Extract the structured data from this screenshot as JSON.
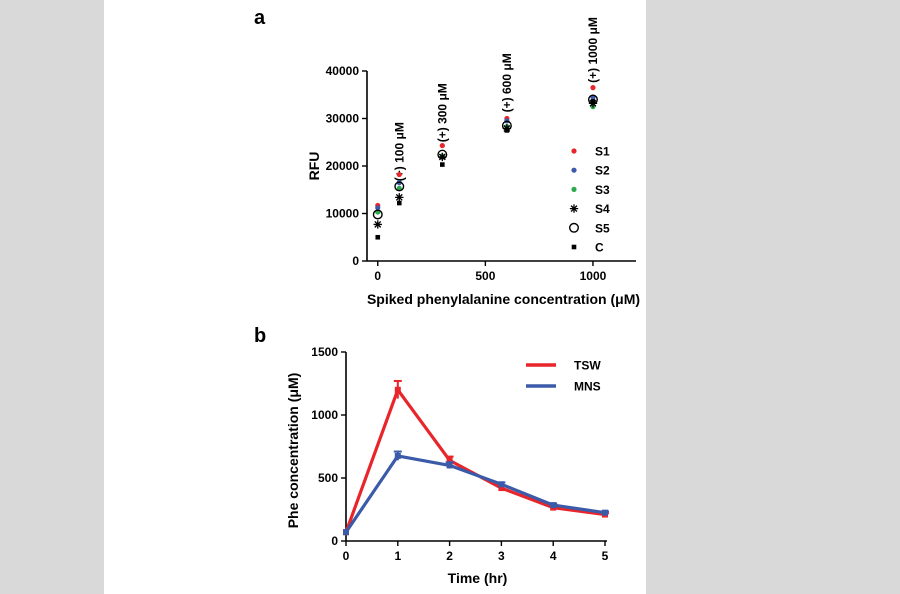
{
  "panel_labels": {
    "a": "a",
    "b": "b"
  },
  "chart_data": [
    {
      "type": "scatter",
      "panel": "a",
      "xlabel": "Spiked phenylalanine concentration (μM)",
      "ylabel": "RFU",
      "xlim": [
        -50,
        1200
      ],
      "ylim": [
        0,
        40000
      ],
      "xticks": [
        0,
        500,
        1000
      ],
      "yticks": [
        0,
        10000,
        20000,
        30000,
        40000
      ],
      "tick_labels_x": [
        "0",
        "500",
        "1000"
      ],
      "tick_labels_y": [
        "0",
        "10000",
        "20000",
        "30000",
        "40000"
      ],
      "annotations": [
        {
          "x": 100,
          "y": 16800,
          "text": "(+) 100 μM"
        },
        {
          "x": 300,
          "y": 25000,
          "text": "(+) 300 μM"
        },
        {
          "x": 600,
          "y": 31300,
          "text": "(+) 600 μM"
        },
        {
          "x": 1000,
          "y": 37500,
          "text": "(+) 1000 μM"
        }
      ],
      "series": [
        {
          "name": "S1",
          "marker": "dot",
          "color": "#e8252a",
          "points": [
            [
              0,
              11700
            ],
            [
              100,
              18200
            ],
            [
              300,
              24300
            ],
            [
              600,
              30000
            ],
            [
              1000,
              36500
            ]
          ]
        },
        {
          "name": "S2",
          "marker": "dot",
          "color": "#3b5ba9",
          "points": [
            [
              0,
              11200
            ],
            [
              100,
              16500
            ],
            [
              300,
              22000
            ],
            [
              600,
              29500
            ],
            [
              1000,
              34500
            ]
          ]
        },
        {
          "name": "S3",
          "marker": "dot",
          "color": "#2ea84a",
          "points": [
            [
              0,
              10300
            ],
            [
              100,
              15300
            ],
            [
              300,
              22100
            ],
            [
              600,
              28300
            ],
            [
              1000,
              32500
            ]
          ]
        },
        {
          "name": "S4",
          "marker": "star",
          "color": "#000000",
          "points": [
            [
              0,
              7700
            ],
            [
              100,
              13400
            ],
            [
              300,
              21900
            ],
            [
              600,
              27900
            ],
            [
              1000,
              33200
            ]
          ]
        },
        {
          "name": "S5",
          "marker": "circle",
          "color": "#000000",
          "points": [
            [
              0,
              9800
            ],
            [
              100,
              15700
            ],
            [
              300,
              22400
            ],
            [
              600,
              28500
            ],
            [
              1000,
              34000
            ]
          ]
        },
        {
          "name": "C",
          "marker": "square",
          "color": "#000000",
          "points": [
            [
              0,
              5000
            ],
            [
              100,
              12200
            ],
            [
              300,
              20300
            ],
            [
              600,
              27500
            ],
            [
              1000,
              33600
            ]
          ]
        }
      ],
      "legend_position": "right"
    },
    {
      "type": "line",
      "panel": "b",
      "xlabel": "Time (hr)",
      "ylabel": "Phe concentration (μM)",
      "xlim": [
        0,
        5
      ],
      "ylim": [
        0,
        1500
      ],
      "xticks": [
        0,
        1,
        2,
        3,
        4,
        5
      ],
      "yticks": [
        0,
        500,
        1000,
        1500
      ],
      "tick_labels_x": [
        "0",
        "1",
        "2",
        "3",
        "4",
        "5"
      ],
      "tick_labels_y": [
        "0",
        "500",
        "1000",
        "1500"
      ],
      "series": [
        {
          "name": "TSW",
          "color": "#e8252a",
          "x": [
            0,
            1,
            2,
            3,
            4,
            5
          ],
          "values": [
            70,
            1200,
            640,
            420,
            265,
            210
          ],
          "errors": [
            0,
            70,
            30,
            20,
            12,
            10
          ]
        },
        {
          "name": "MNS",
          "color": "#3b5ba9",
          "x": [
            0,
            1,
            2,
            3,
            4,
            5
          ],
          "values": [
            70,
            675,
            600,
            450,
            285,
            225
          ],
          "errors": [
            0,
            35,
            25,
            15,
            12,
            10
          ]
        }
      ],
      "legend_position": "top-right"
    }
  ]
}
